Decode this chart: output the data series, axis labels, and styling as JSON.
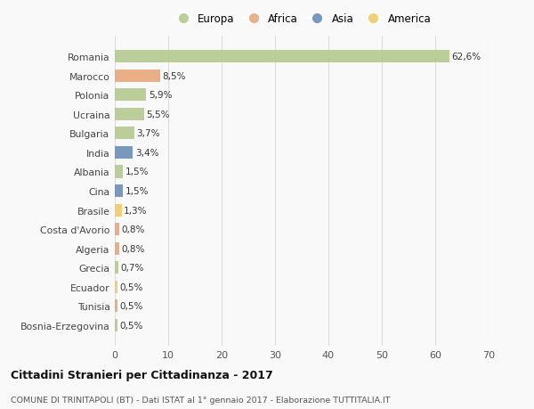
{
  "countries": [
    "Romania",
    "Marocco",
    "Polonia",
    "Ucraina",
    "Bulgaria",
    "India",
    "Albania",
    "Cina",
    "Brasile",
    "Costa d'Avorio",
    "Algeria",
    "Grecia",
    "Ecuador",
    "Tunisia",
    "Bosnia-Erzegovina"
  ],
  "values": [
    62.6,
    8.5,
    5.9,
    5.5,
    3.7,
    3.4,
    1.5,
    1.5,
    1.3,
    0.8,
    0.8,
    0.7,
    0.5,
    0.5,
    0.5
  ],
  "labels": [
    "62,6%",
    "8,5%",
    "5,9%",
    "5,5%",
    "3,7%",
    "3,4%",
    "1,5%",
    "1,5%",
    "1,3%",
    "0,8%",
    "0,8%",
    "0,7%",
    "0,5%",
    "0,5%",
    "0,5%"
  ],
  "continents": [
    "Europa",
    "Africa",
    "Europa",
    "Europa",
    "Europa",
    "Asia",
    "Europa",
    "Asia",
    "America",
    "Africa",
    "Africa",
    "Europa",
    "America",
    "Africa",
    "Europa"
  ],
  "continent_colors": {
    "Europa": "#b5c98e",
    "Africa": "#e8a87c",
    "Asia": "#6b8eb8",
    "America": "#f0cb6a"
  },
  "legend_items": [
    "Europa",
    "Africa",
    "Asia",
    "America"
  ],
  "title_bold": "Cittadini Stranieri per Cittadinanza - 2017",
  "subtitle": "COMUNE DI TRINITAPOLI (BT) - Dati ISTAT al 1° gennaio 2017 - Elaborazione TUTTITALIA.IT",
  "xlim": [
    0,
    70
  ],
  "xticks": [
    0,
    10,
    20,
    30,
    40,
    50,
    60,
    70
  ],
  "background_color": "#f9f9f9",
  "grid_color": "#dddddd"
}
